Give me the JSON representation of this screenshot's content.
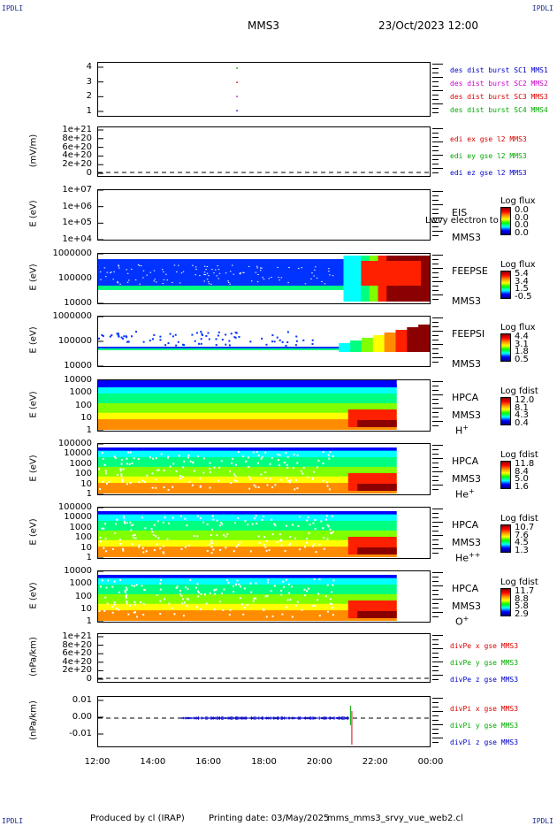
{
  "header": {
    "corner_tl": "IPDLI",
    "corner_tr": "IPDLI",
    "corner_bl": "IPDLI",
    "corner_br": "IPDLI",
    "title": "MMS3",
    "date": "23/Oct/2023 12:00"
  },
  "footer": {
    "produced_by": "Produced by cl (IRAP)",
    "printing_date": "Printing date: 03/May/2025",
    "script_name": "mms_mms3_srvy_vue_web2.cl"
  },
  "colors": {
    "mms1": "#0000cc",
    "mms2": "#cc00cc",
    "mms3": "#dd0000",
    "mms4": "#00aa00",
    "x_component": "#dd0000",
    "y_component": "#00aa00",
    "z_component": "#0000cc"
  },
  "chart_data": [
    {
      "id": "burst",
      "type": "scatter",
      "yticks": [
        "4",
        "3",
        "2",
        "1"
      ],
      "ylim": [
        0.5,
        4.5
      ],
      "x_range": [
        "12:00",
        "00:00"
      ],
      "series": [
        {
          "name": "des dist burst SC1 MMS1",
          "color": "#0000cc",
          "y": 1,
          "x": [
            "17:00"
          ]
        },
        {
          "name": "des dist burst SC2 MMS2",
          "color": "#cc00cc",
          "y": 2,
          "x": [
            "17:00"
          ]
        },
        {
          "name": "des dist burst SC3 MMS3",
          "color": "#dd0000",
          "y": 3,
          "x": [
            "17:00"
          ]
        },
        {
          "name": "des dist burst SC4 MMS4",
          "color": "#00aa00",
          "y": 4,
          "x": [
            "17:00"
          ]
        }
      ]
    },
    {
      "id": "edi",
      "type": "line",
      "ylabel": "(mV/m)",
      "yticks": [
        "1e+21",
        "8e+20",
        "6e+20",
        "4e+20",
        "2e+20",
        "0"
      ],
      "series": [
        {
          "name": "edi ex gse l2 MMS3",
          "color": "#dd0000"
        },
        {
          "name": "edi ey gse l2 MMS3",
          "color": "#00aa00"
        },
        {
          "name": "edi ez gse l2 MMS3",
          "color": "#0000cc"
        }
      ]
    },
    {
      "id": "eis",
      "type": "heatmap",
      "ylabel": "E (eV)",
      "yticks": [
        "1e+07",
        "1e+06",
        "1e+05",
        "1e+04"
      ],
      "label1": "EIS",
      "label2": "MMS3",
      "overlay_text": "Lwvy electron to",
      "colorbar": {
        "title": "Log flux",
        "values": [
          "0.0",
          "0.0",
          "0.0",
          "0.0"
        ]
      }
    },
    {
      "id": "feepse",
      "type": "heatmap",
      "ylabel": "E (eV)",
      "yticks": [
        "1000000",
        "100000",
        "10000"
      ],
      "label1": "FEEPSE",
      "label2": "MMS3",
      "colorbar": {
        "title": "Log flux",
        "values": [
          "5.4",
          "3.4",
          "1.5",
          "-0.5"
        ]
      }
    },
    {
      "id": "feepsi",
      "type": "heatmap",
      "ylabel": "E (eV)",
      "yticks": [
        "1000000",
        "100000",
        "10000"
      ],
      "label1": "FEEPSI",
      "label2": "MMS3",
      "colorbar": {
        "title": "Log flux",
        "values": [
          "4.4",
          "3.1",
          "1.8",
          "0.5"
        ]
      }
    },
    {
      "id": "hpca_h",
      "type": "heatmap",
      "ylabel": "E (eV)",
      "yticks": [
        "10000",
        "1000",
        "100",
        "10",
        "1"
      ],
      "label1": "HPCA",
      "label2": "MMS3",
      "species": "H",
      "species_sup": "+",
      "colorbar": {
        "title": "Log fdist",
        "values": [
          "12.0",
          "8.1",
          "4.3",
          "0.4"
        ]
      }
    },
    {
      "id": "hpca_he",
      "type": "heatmap",
      "ylabel": "E (eV)",
      "yticks": [
        "100000",
        "10000",
        "1000",
        "100",
        "10",
        "1"
      ],
      "label1": "HPCA",
      "label2": "MMS3",
      "species": "He",
      "species_sup": "+",
      "colorbar": {
        "title": "Log fdist",
        "values": [
          "11.8",
          "8.4",
          "5.0",
          "1.6"
        ]
      }
    },
    {
      "id": "hpca_hepp",
      "type": "heatmap",
      "ylabel": "E (eV)",
      "yticks": [
        "100000",
        "10000",
        "1000",
        "100",
        "10",
        "1"
      ],
      "label1": "HPCA",
      "label2": "MMS3",
      "species": "He",
      "species_sup": "++",
      "colorbar": {
        "title": "Log fdist",
        "values": [
          "10.7",
          "7.6",
          "4.5",
          "1.3"
        ]
      }
    },
    {
      "id": "hpca_o",
      "type": "heatmap",
      "ylabel": "E (eV)",
      "yticks": [
        "10000",
        "1000",
        "100",
        "10",
        "1"
      ],
      "label1": "HPCA",
      "label2": "MMS3",
      "species": "O",
      "species_sup": "+",
      "colorbar": {
        "title": "Log fdist",
        "values": [
          "11.7",
          "8.8",
          "5.8",
          "2.9"
        ]
      }
    },
    {
      "id": "divpe",
      "type": "line",
      "ylabel": "(nPa/km)",
      "yticks": [
        "1e+21",
        "8e+20",
        "6e+20",
        "4e+20",
        "2e+20",
        "0"
      ],
      "series": [
        {
          "name": "divPe x gse MMS3",
          "color": "#dd0000"
        },
        {
          "name": "divPe y gse MMS3",
          "color": "#00aa00"
        },
        {
          "name": "divPe z gse MMS3",
          "color": "#0000cc"
        }
      ]
    },
    {
      "id": "divpi",
      "type": "line",
      "ylabel": "(nPa/km)",
      "yticks": [
        "0.01",
        "0.00",
        "-0.01"
      ],
      "ylim": [
        -0.018,
        0.012
      ],
      "series": [
        {
          "name": "divPi x gse MMS3",
          "color": "#dd0000"
        },
        {
          "name": "divPi y gse MMS3",
          "color": "#00aa00"
        },
        {
          "name": "divPi z gse MMS3",
          "color": "#0000cc"
        }
      ]
    }
  ],
  "xaxis": {
    "ticks": [
      "12:00",
      "14:00",
      "16:00",
      "18:00",
      "20:00",
      "22:00",
      "00:00"
    ]
  }
}
